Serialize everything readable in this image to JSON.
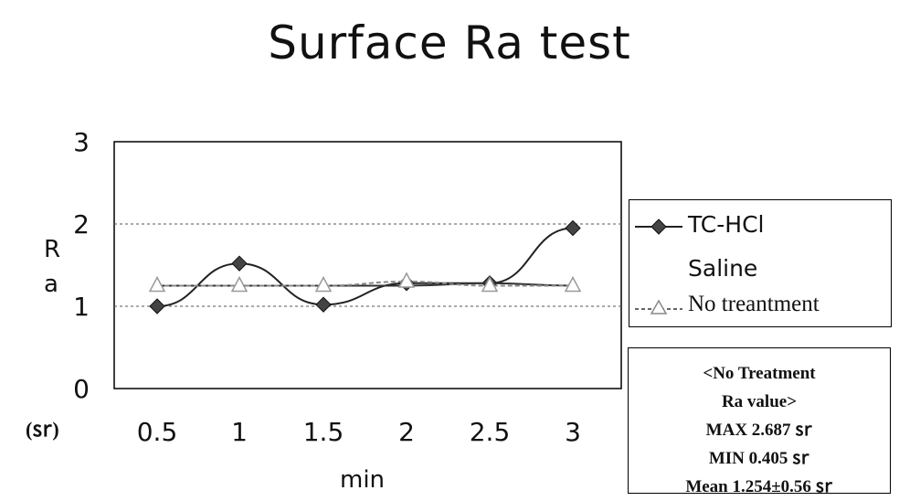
{
  "chart_data": {
    "type": "line",
    "title": "Surface Ra test",
    "xlabel": "min",
    "ylabel": [
      "R",
      "a"
    ],
    "unit_label": "(㏛)",
    "categories": [
      "0.5",
      "1",
      "1.5",
      "2",
      "2.5",
      "3"
    ],
    "y_ticks": [
      "0",
      "1",
      "2",
      "3"
    ],
    "ylim": [
      0,
      3
    ],
    "grid": true,
    "series": [
      {
        "name": "TC-HCl",
        "values": [
          1.0,
          1.52,
          1.02,
          1.28,
          1.28,
          1.95
        ],
        "color": "#222222",
        "marker": "diamond"
      },
      {
        "name": "Saline",
        "values": [
          1.25,
          1.25,
          1.25,
          1.25,
          1.28,
          1.25
        ],
        "color": "#333333",
        "marker": "none"
      },
      {
        "name": "No treantment",
        "values": [
          1.25,
          1.25,
          1.25,
          1.3,
          1.25,
          1.25
        ],
        "color": "#888888",
        "marker": "triangle"
      }
    ],
    "legend_position": "right",
    "annotation_box": [
      "<No Treatment",
      "Ra value>",
      "MAX 2.687 ㏛",
      "MIN 0.405 ㏛",
      "Mean  1.254±0.56 ㏛"
    ]
  }
}
